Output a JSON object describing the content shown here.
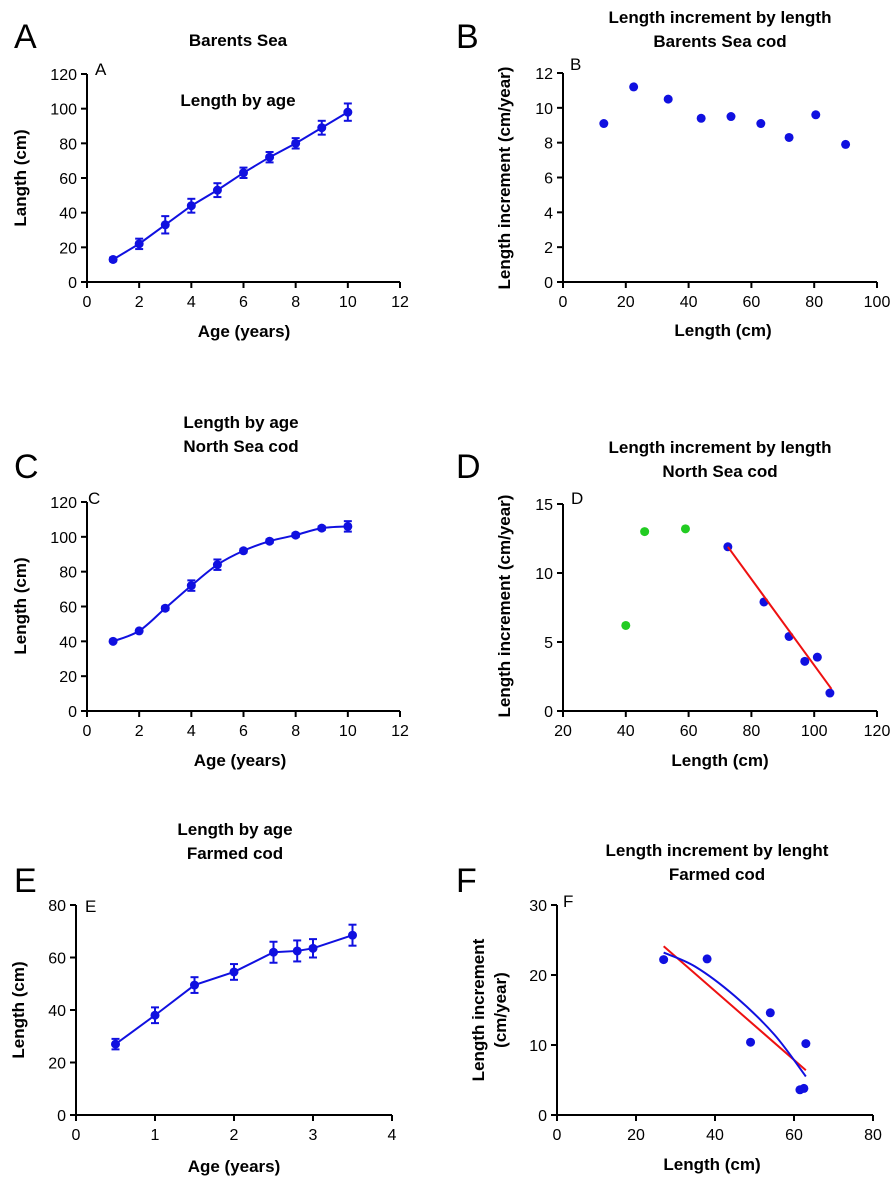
{
  "chart_data": [
    {
      "id": "A",
      "type": "line",
      "panel_label": "A",
      "inner_label": "A",
      "title": [
        "Length by age",
        "Barents Sea"
      ],
      "xlabel": "Age (years)",
      "ylabel": "Langth (cm)",
      "xlim": [
        0,
        12
      ],
      "ylim": [
        0,
        120
      ],
      "xticks": [
        0,
        2,
        4,
        6,
        8,
        10,
        12
      ],
      "yticks": [
        0,
        20,
        40,
        60,
        80,
        100,
        120
      ],
      "series": [
        {
          "color": "#1010e0",
          "mode": "line+markers",
          "errors": true,
          "x": [
            1,
            2,
            3,
            4,
            5,
            6,
            7,
            8,
            9,
            10
          ],
          "y": [
            13,
            22,
            33,
            44,
            53,
            63,
            72,
            80,
            89,
            98
          ],
          "err": [
            1,
            3,
            5,
            4,
            4,
            3,
            3,
            3,
            4,
            5
          ]
        }
      ]
    },
    {
      "id": "B",
      "type": "scatter",
      "panel_label": "B",
      "inner_label": "B",
      "title": [
        "Length increment by length",
        "Barents Sea cod"
      ],
      "xlabel": "Length (cm)",
      "ylabel": "Length increment (cm/year)",
      "xlim": [
        0,
        100
      ],
      "ylim": [
        0,
        12
      ],
      "xticks": [
        0,
        20,
        40,
        60,
        80,
        100
      ],
      "yticks": [
        0,
        2,
        4,
        6,
        8,
        10,
        12
      ],
      "series": [
        {
          "color": "#1010e0",
          "mode": "markers",
          "x": [
            13,
            22.5,
            33.5,
            44,
            53.5,
            63,
            72,
            80.5,
            90
          ],
          "y": [
            9.1,
            11.2,
            10.5,
            9.4,
            9.5,
            9.1,
            8.3,
            9.6,
            7.9
          ]
        }
      ]
    },
    {
      "id": "C",
      "type": "line",
      "panel_label": "C",
      "inner_label": "C",
      "title": [
        "Length by age",
        "North Sea cod"
      ],
      "xlabel": "Age (years)",
      "ylabel": "Length (cm)",
      "xlim": [
        0,
        12
      ],
      "ylim": [
        0,
        120
      ],
      "xticks": [
        0,
        2,
        4,
        6,
        8,
        10,
        12
      ],
      "yticks": [
        0,
        20,
        40,
        60,
        80,
        100,
        120
      ],
      "series": [
        {
          "color": "#1010e0",
          "mode": "smooth+markers",
          "errors": true,
          "x": [
            1,
            2,
            3,
            4,
            5,
            6,
            7,
            8,
            9,
            10
          ],
          "y": [
            40,
            46,
            59,
            72,
            84,
            92,
            97.5,
            101,
            105,
            106
          ],
          "err": [
            0,
            0,
            1,
            3,
            3,
            1,
            1,
            1,
            1,
            3
          ]
        }
      ]
    },
    {
      "id": "D",
      "type": "scatter",
      "panel_label": "D",
      "inner_label": "D",
      "title": [
        "Length increment by length",
        "North  Sea cod"
      ],
      "xlabel": "Length (cm)",
      "ylabel": "Length increment (cm/year)",
      "xlim": [
        20,
        120
      ],
      "ylim": [
        0,
        15
      ],
      "xticks": [
        20,
        40,
        60,
        80,
        100,
        120
      ],
      "yticks": [
        0,
        5,
        10,
        15
      ],
      "series": [
        {
          "color": "#22cc22",
          "mode": "markers",
          "x": [
            40,
            46,
            59
          ],
          "y": [
            6.2,
            13.0,
            13.2
          ]
        },
        {
          "color": "#1010e0",
          "mode": "markers",
          "x": [
            72.5,
            84,
            92,
            97,
            101,
            105
          ],
          "y": [
            11.9,
            7.9,
            5.4,
            3.6,
            3.9,
            1.3
          ]
        },
        {
          "color": "#ee1111",
          "mode": "line",
          "x": [
            72.5,
            105.5
          ],
          "y": [
            11.9,
            1.6
          ]
        }
      ]
    },
    {
      "id": "E",
      "type": "line",
      "panel_label": "E",
      "inner_label": "E",
      "title": [
        "Length by age",
        "Farmed cod"
      ],
      "xlabel": "Age (years)",
      "ylabel": "Length (cm)",
      "xlim": [
        0,
        4
      ],
      "ylim": [
        0,
        80
      ],
      "xticks": [
        0,
        1,
        2,
        3,
        4
      ],
      "yticks": [
        0,
        20,
        40,
        60,
        80
      ],
      "series": [
        {
          "color": "#1010e0",
          "mode": "line+markers",
          "errors": true,
          "x": [
            0.5,
            1,
            1.5,
            2,
            2.5,
            2.8,
            3,
            3.5
          ],
          "y": [
            27,
            38,
            49.5,
            54.5,
            62,
            62.5,
            63.5,
            68.5
          ],
          "err": [
            2,
            3,
            3,
            3,
            4,
            4,
            3.5,
            4
          ]
        }
      ]
    },
    {
      "id": "F",
      "type": "scatter",
      "panel_label": "F",
      "inner_label": "F",
      "title": [
        "Length increment by lenght",
        "Farmed cod"
      ],
      "xlabel": "Length (cm)",
      "ylabel": [
        "Length increment",
        "(cm/year)"
      ],
      "xlim": [
        0,
        80
      ],
      "ylim": [
        0,
        30
      ],
      "xticks": [
        0,
        20,
        40,
        60,
        80
      ],
      "yticks": [
        0,
        10,
        20,
        30
      ],
      "series": [
        {
          "color": "#1010e0",
          "mode": "markers",
          "x": [
            27,
            38,
            49,
            54,
            61.5,
            62.5,
            63
          ],
          "y": [
            22.2,
            22.3,
            10.4,
            14.6,
            3.6,
            3.8,
            10.2
          ]
        },
        {
          "color": "#ee1111",
          "mode": "line",
          "x": [
            27,
            63
          ],
          "y": [
            24.1,
            6.4
          ]
        },
        {
          "color": "#1010e0",
          "mode": "smooth",
          "x": [
            27,
            35,
            45,
            55,
            63
          ],
          "y": [
            23.2,
            21.2,
            17.0,
            11.5,
            5.5
          ]
        }
      ]
    }
  ]
}
